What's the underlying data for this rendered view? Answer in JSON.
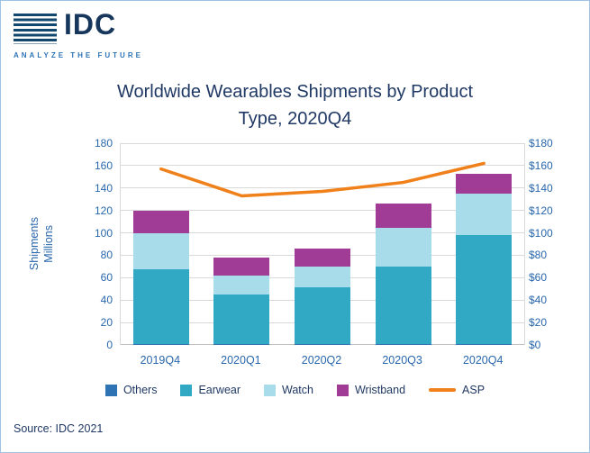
{
  "logo": {
    "name": "IDC",
    "tagline": "ANALYZE THE FUTURE"
  },
  "title": {
    "line1": "Worldwide Wearables Shipments by Product",
    "line2": "Type, 2020Q4"
  },
  "axes": {
    "ylabel_word1": "Shipments",
    "ylabel_word2": "Millions"
  },
  "source": "Source: IDC 2021",
  "chart_data": {
    "type": "bar",
    "stacked": true,
    "title": "Worldwide Wearables Shipments by Product Type, 2020Q4",
    "categories": [
      "2019Q4",
      "2020Q1",
      "2020Q2",
      "2020Q3",
      "2020Q4"
    ],
    "series": [
      {
        "name": "Others",
        "color": "#2e74b5",
        "values": [
          0.8,
          0.8,
          0.8,
          0.8,
          0.8
        ]
      },
      {
        "name": "Earwear",
        "color": "#31a8c4",
        "values": [
          67,
          44,
          51,
          69,
          97
        ]
      },
      {
        "name": "Watch",
        "color": "#a9dcea",
        "values": [
          32,
          17,
          18,
          35,
          37
        ]
      },
      {
        "name": "Wristband",
        "color": "#a13c96",
        "values": [
          20,
          16,
          16,
          21,
          18
        ]
      }
    ],
    "line_series": {
      "name": "ASP",
      "color": "#f0801a",
      "axis": "right",
      "values": [
        157,
        133,
        137,
        145,
        162
      ]
    },
    "ylabel": "Shipments Millions",
    "ylim": [
      0,
      180
    ],
    "tick_step": 20,
    "y2lim": [
      0,
      180
    ],
    "y2_prefix": "$",
    "grid": true,
    "legend_position": "bottom"
  }
}
